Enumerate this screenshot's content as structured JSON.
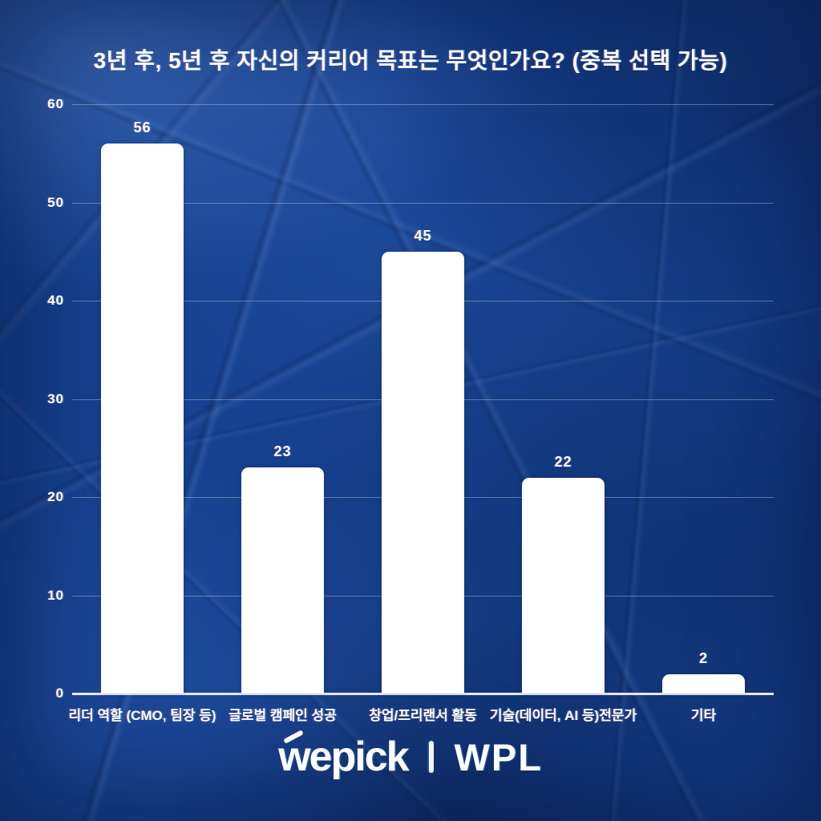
{
  "poster": {
    "background_color": "#15418f",
    "bar_color": "#ffffff",
    "text_color": "#ffffff"
  },
  "chart_data": {
    "type": "bar",
    "title": "3년 후, 5년 후 자신의 커리어 목표는 무엇인가요? (중복 선택 가능)",
    "categories": [
      "리더 역할 (CMO, 팀장 등)",
      "글로벌 캠페인 성공",
      "창업/프리랜서 활동",
      "기술(데이터, AI 등)전문가",
      "기타"
    ],
    "values": [
      56,
      23,
      45,
      22,
      2
    ],
    "xlabel": "",
    "ylabel": "",
    "y_ticks": [
      0,
      10,
      20,
      30,
      40,
      50,
      60
    ],
    "ylim": [
      0,
      60
    ],
    "grid": true,
    "legend": false,
    "bar_corner_radius": 9,
    "gridline_color": "rgba(255,255,255,0.32)"
  },
  "footer": {
    "brand_left": "wepick",
    "separator": "|",
    "brand_right": "WPL"
  }
}
